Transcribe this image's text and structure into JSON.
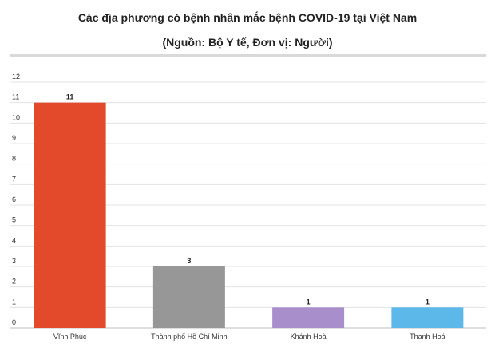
{
  "chart_data": {
    "type": "bar",
    "title": "Các địa phương có bệnh nhân mắc bệnh COVID-19 tại Việt Nam",
    "subtitle": "(Nguồn: Bộ Y tế, Đơn vị: Người)",
    "categories": [
      "Vĩnh Phúc",
      "Thành phố Hồ Chí Minh",
      "Khánh Hoà",
      "Thanh Hoá"
    ],
    "values": [
      11,
      3,
      1,
      1
    ],
    "colors": [
      "#e34a2b",
      "#979797",
      "#a98ecc",
      "#5bb8e8"
    ],
    "xlabel": "",
    "ylabel": "",
    "ylim": [
      0,
      12
    ],
    "yticks": [
      0,
      1,
      2,
      3,
      4,
      5,
      6,
      7,
      8,
      9,
      10,
      11,
      12
    ],
    "grid": true,
    "legend": "none",
    "data_labels": true
  }
}
